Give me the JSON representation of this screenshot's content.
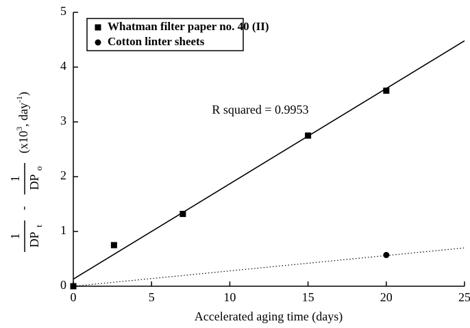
{
  "chart_data": {
    "type": "scatter",
    "xlabel": "Accelerated aging time (days)",
    "ylabel": {
      "term1": {
        "num": "1",
        "den": "DP",
        "sub": "t"
      },
      "operator": "-",
      "term2": {
        "num": "1",
        "den": "DP",
        "sub": "o"
      },
      "units": [
        "(x10",
        "3",
        ", day",
        "-1",
        ")"
      ]
    },
    "annotation": "R squared = 0.9953",
    "xlim": [
      0,
      25
    ],
    "xticks": [
      0,
      5,
      10,
      15,
      20,
      25
    ],
    "ylim": [
      0,
      5
    ],
    "yticks": [
      0,
      1,
      2,
      3,
      4,
      5
    ],
    "legend": "upper left",
    "series": [
      {
        "name": "Whatman filter paper no. 40 (II)",
        "color": "#000000",
        "marker": "square",
        "x": [
          0,
          2.6,
          7,
          15,
          20
        ],
        "values": [
          0,
          0.75,
          1.32,
          2.75,
          3.57
        ],
        "fit": {
          "x": [
            0,
            25
          ],
          "values": [
            0.13,
            4.48
          ],
          "style": "solid"
        }
      },
      {
        "name": "Cotton linter sheets",
        "color": "#000000",
        "marker": "circle",
        "x": [
          0,
          20
        ],
        "values": [
          0,
          0.57
        ],
        "fit": {
          "x": [
            0,
            25
          ],
          "values": [
            0,
            0.7
          ],
          "style": "dotted"
        }
      }
    ]
  }
}
